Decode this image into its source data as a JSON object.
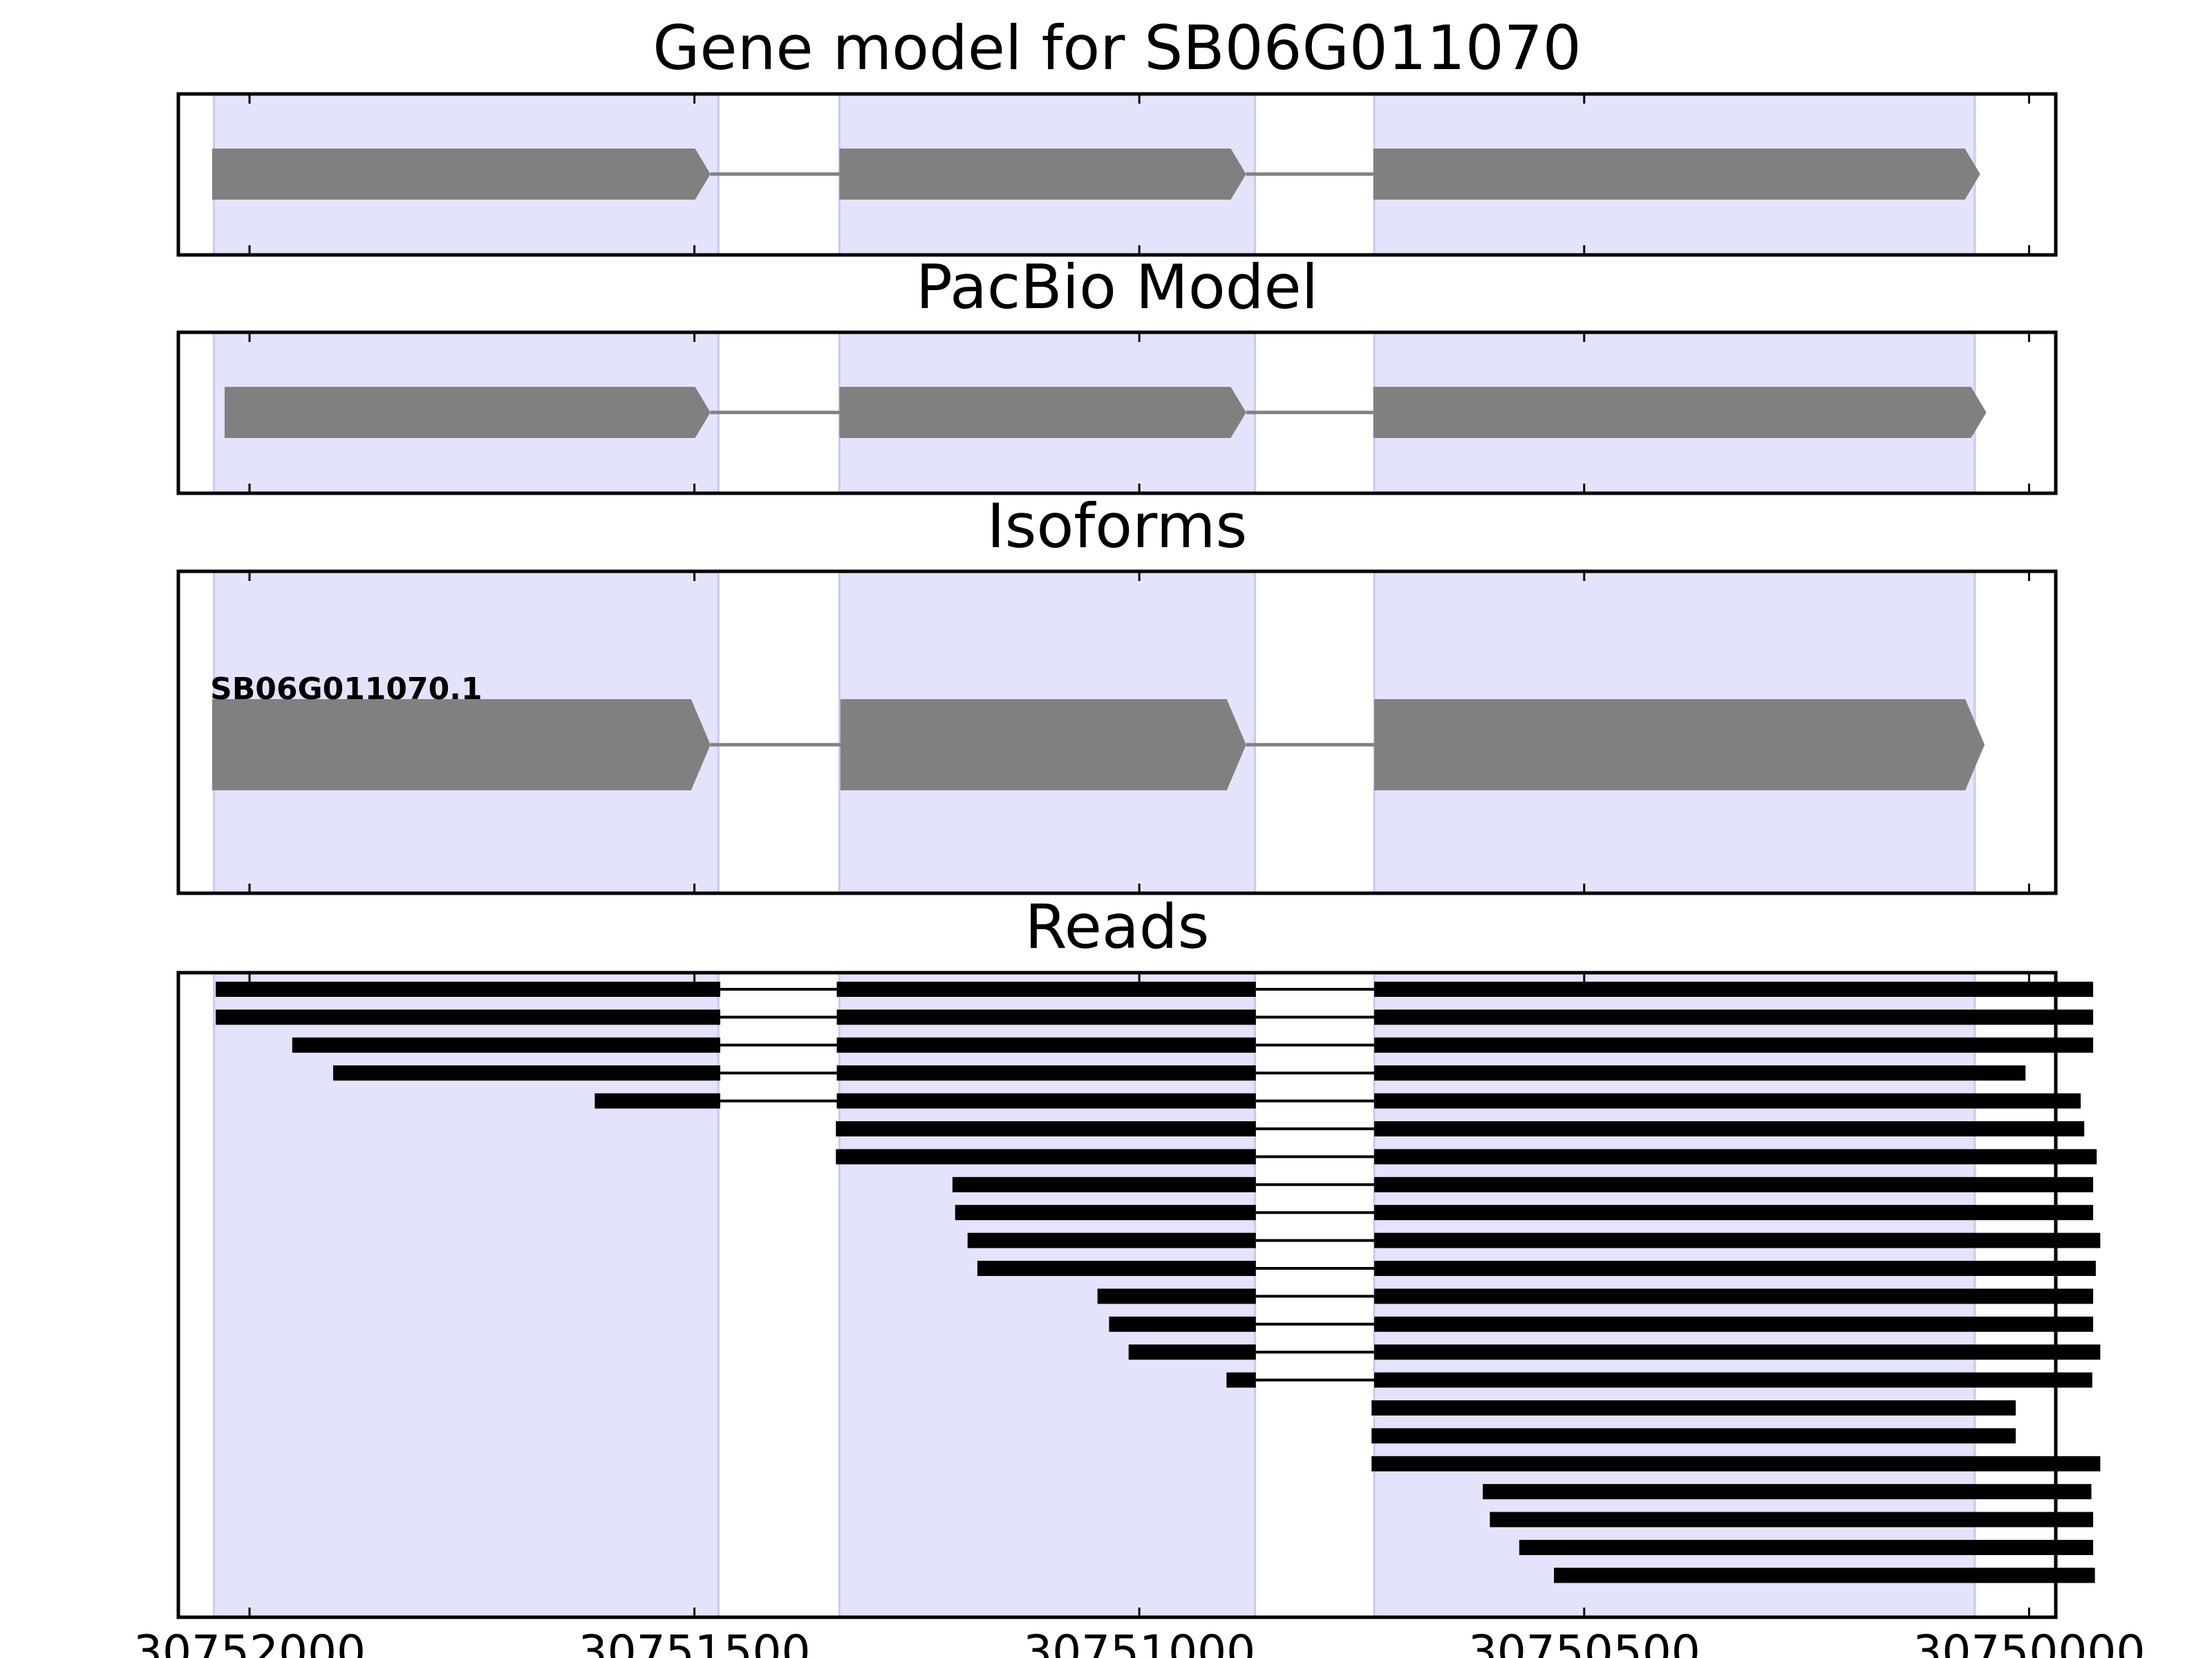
{
  "figure": {
    "x_axis": {
      "range": [
        30752080,
        30749970
      ],
      "ticks": [
        30752000,
        30751500,
        30751000,
        30750500,
        30750000
      ],
      "tick_labels": [
        "30752000",
        "30751500",
        "30751000",
        "30750500",
        "30750000"
      ]
    },
    "exon_shading": {
      "color": "#e3e3fb",
      "edge_color": "#c9c9f3",
      "regions": [
        [
          30752040,
          30751473
        ],
        [
          30751337,
          30750870
        ],
        [
          30750736,
          30750061
        ]
      ]
    },
    "feature_color": "#808080",
    "read_color": "#000000"
  },
  "chart_data": [
    {
      "type": "gene-structure",
      "title": "Gene model for SB06G011070",
      "exons": [
        [
          30752042,
          30751482
        ],
        [
          30751337,
          30750880
        ],
        [
          30750737,
          30750055
        ]
      ],
      "strand": "-"
    },
    {
      "type": "gene-structure",
      "title": "PacBio Model",
      "exons": [
        [
          30752028,
          30751482
        ],
        [
          30751337,
          30750880
        ],
        [
          30750737,
          30750048
        ]
      ],
      "strand": "-"
    },
    {
      "type": "gene-structure",
      "title": "Isoforms",
      "isoforms": [
        {
          "label": "SB06G011070.1",
          "exons": [
            [
              30752042,
              30751482
            ],
            [
              30751336,
              30750880
            ],
            [
              30750736,
              30750050
            ]
          ]
        }
      ]
    },
    {
      "type": "reads",
      "title": "Reads",
      "reads": [
        [
          [
            30752038,
            30751471
          ],
          [
            30751340,
            30750869
          ],
          [
            30750736,
            30749928
          ]
        ],
        [
          [
            30752038,
            30751471
          ],
          [
            30751340,
            30750869
          ],
          [
            30750736,
            30749928
          ]
        ],
        [
          [
            30751952,
            30751471
          ],
          [
            30751340,
            30750869
          ],
          [
            30750736,
            30749928
          ]
        ],
        [
          [
            30751906,
            30751471
          ],
          [
            30751340,
            30750869
          ],
          [
            30750736,
            30750004
          ]
        ],
        [
          [
            30751612,
            30751471
          ],
          [
            30751340,
            30750869
          ],
          [
            30750736,
            30749942
          ]
        ],
        [
          [
            30751341,
            30750869
          ],
          [
            30750736,
            30749938
          ]
        ],
        [
          [
            30751341,
            30750869
          ],
          [
            30750736,
            30749924
          ]
        ],
        [
          [
            30751210,
            30750869
          ],
          [
            30750736,
            30749928
          ]
        ],
        [
          [
            30751207,
            30750869
          ],
          [
            30750736,
            30749928
          ]
        ],
        [
          [
            30751193,
            30750869
          ],
          [
            30750736,
            30749920
          ]
        ],
        [
          [
            30751182,
            30750869
          ],
          [
            30750736,
            30749925
          ]
        ],
        [
          [
            30751047,
            30750869
          ],
          [
            30750736,
            30749928
          ]
        ],
        [
          [
            30751034,
            30750869
          ],
          [
            30750736,
            30749928
          ]
        ],
        [
          [
            30751012,
            30750869
          ],
          [
            30750736,
            30749920
          ]
        ],
        [
          [
            30750902,
            30750869
          ],
          [
            30750736,
            30749929
          ]
        ],
        [
          [
            30750739,
            30750015
          ]
        ],
        [
          [
            30750739,
            30750015
          ]
        ],
        [
          [
            30750739,
            30749920
          ]
        ],
        [
          [
            30750614,
            30749930
          ]
        ],
        [
          [
            30750606,
            30749928
          ]
        ],
        [
          [
            30750573,
            30749928
          ]
        ],
        [
          [
            30750534,
            30749926
          ]
        ]
      ]
    }
  ]
}
